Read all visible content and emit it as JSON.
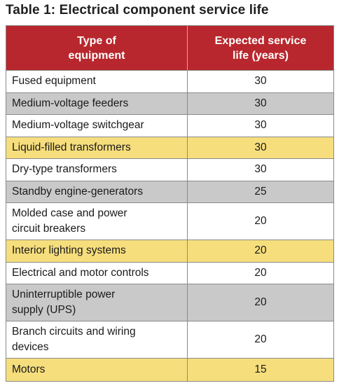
{
  "title": "Table 1: Electrical component service life",
  "header": {
    "col1": "Type of\nequipment",
    "col2": "Expected service\nlife (years)"
  },
  "colors": {
    "header_bg": "#b8272d",
    "row_gray": "#c9c9c9",
    "row_yellow": "#f6de7d",
    "row_white": "#ffffff"
  },
  "rows": [
    {
      "equipment": "Fused equipment",
      "life": "30",
      "shade": "white"
    },
    {
      "equipment": "Medium-voltage feeders",
      "life": "30",
      "shade": "gray"
    },
    {
      "equipment": "Medium-voltage switchgear",
      "life": "30",
      "shade": "white"
    },
    {
      "equipment": "Liquid-filled transformers",
      "life": "30",
      "shade": "yellow"
    },
    {
      "equipment": "Dry-type transformers",
      "life": "30",
      "shade": "white"
    },
    {
      "equipment": "Standby engine-generators",
      "life": "25",
      "shade": "gray"
    },
    {
      "equipment": "Molded case and power\ncircuit breakers",
      "life": "20",
      "shade": "white"
    },
    {
      "equipment": "Interior lighting systems",
      "life": "20",
      "shade": "yellow"
    },
    {
      "equipment": "Electrical and motor controls",
      "life": "20",
      "shade": "white"
    },
    {
      "equipment": "Uninterruptible power\nsupply (UPS)",
      "life": "20",
      "shade": "gray"
    },
    {
      "equipment": "Branch circuits and wiring\ndevices",
      "life": "20",
      "shade": "white"
    },
    {
      "equipment": "Motors",
      "life": "15",
      "shade": "yellow"
    }
  ]
}
